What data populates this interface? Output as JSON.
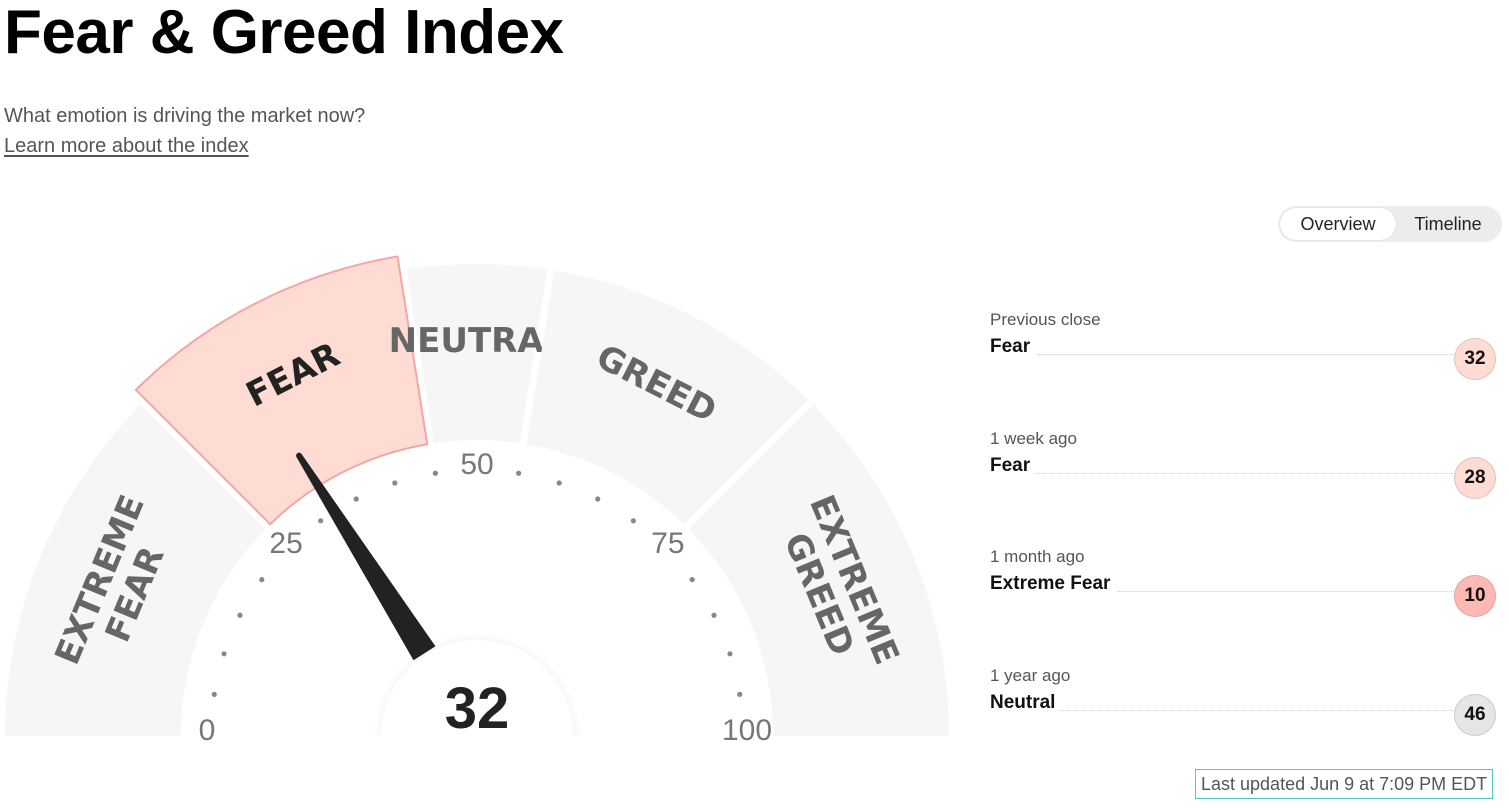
{
  "header": {
    "title": "Fear & Greed Index",
    "subtitle": "What emotion is driving the market now?",
    "learn_more": "Learn more about the index"
  },
  "view_toggle": {
    "options": [
      "Overview",
      "Timeline"
    ],
    "selected": "Overview"
  },
  "gauge": {
    "value": 32,
    "value_label": "32",
    "active_segment": "FEAR",
    "segments": [
      {
        "lines": [
          "EXTREME",
          "FEAR"
        ],
        "from": 0,
        "to": 25
      },
      {
        "lines": [
          "FEAR"
        ],
        "from": 25,
        "to": 45
      },
      {
        "lines": [
          "NEUTRAL"
        ],
        "from": 45,
        "to": 55
      },
      {
        "lines": [
          "GREED"
        ],
        "from": 55,
        "to": 75
      },
      {
        "lines": [
          "EXTREME",
          "GREED"
        ],
        "from": 75,
        "to": 100
      }
    ],
    "tick_labels": [
      "0",
      "25",
      "50",
      "75",
      "100"
    ],
    "colors": {
      "segment_fill": "#f6f6f6",
      "active_fill": "#ffdcd3",
      "active_stroke": "#f4a6a6",
      "needle": "#222222",
      "tick_dot": "#888888"
    }
  },
  "history": [
    {
      "label": "Previous close",
      "rating": "Fear",
      "value": "32",
      "color": "#ffdcd3"
    },
    {
      "label": "1 week ago",
      "rating": "Fear",
      "value": "28",
      "color": "#ffdcd3"
    },
    {
      "label": "1 month ago",
      "rating": "Extreme Fear",
      "value": "10",
      "color": "#ffb9b4"
    },
    {
      "label": "1 year ago",
      "rating": "Neutral",
      "value": "46",
      "color": "#e6e6e6"
    }
  ],
  "last_updated": "Last updated Jun 9 at 7:09 PM EDT"
}
